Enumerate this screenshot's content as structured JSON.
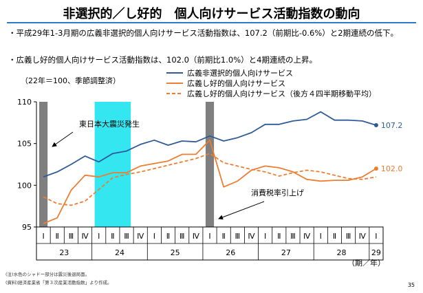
{
  "title": "非選択的／し好的　個人向けサービス活動指数の動向",
  "bullets": [
    "・平成29年1-3月期の広義非選択的個人向けサービス活動指数は、107.2（前期比-0.6%）と2期連続の低下。",
    "・広義し好的個人向けサービス活動指数は、102.0（前期比1.0%）と4期連続の上昇。"
  ],
  "base_note": "（22年＝100、季節調整済）",
  "notes": [
    "(注)水色のシャドー部分は震災後退局面。",
    "(資料)経済産業省「第３次産業活動指数」より作成。"
  ],
  "page_number": "35",
  "colors": {
    "non_selective": "#2e5a97",
    "discretionary": "#ed7d31",
    "gray_shade": "#7f7f7f",
    "cyan_shade": "#33e6f0",
    "title_rule": "#2b78c6"
  },
  "chart_data": {
    "type": "line",
    "ylim": [
      95,
      110
    ],
    "yticks": [
      95,
      100,
      105,
      110
    ],
    "quarter_labels": [
      "Ⅰ",
      "Ⅱ",
      "Ⅲ",
      "Ⅳ",
      "Ⅰ",
      "Ⅱ",
      "Ⅲ",
      "Ⅳ",
      "Ⅰ",
      "Ⅱ",
      "Ⅲ",
      "Ⅳ",
      "Ⅰ",
      "Ⅱ",
      "Ⅲ",
      "Ⅳ",
      "Ⅰ",
      "Ⅱ",
      "Ⅲ",
      "Ⅳ",
      "Ⅰ",
      "Ⅱ",
      "Ⅲ",
      "Ⅳ",
      "Ⅰ"
    ],
    "year_groups": [
      {
        "label": "23",
        "start": 0,
        "end": 3
      },
      {
        "label": "24",
        "start": 4,
        "end": 7
      },
      {
        "label": "25",
        "start": 8,
        "end": 11
      },
      {
        "label": "26",
        "start": 12,
        "end": 15
      },
      {
        "label": "27",
        "start": 16,
        "end": 19
      },
      {
        "label": "28",
        "start": 20,
        "end": 23
      },
      {
        "label": "29",
        "start": 24,
        "end": 24
      }
    ],
    "x_unit_label": "（期／年）",
    "shades": [
      {
        "kind": "gray",
        "from": 0,
        "to": 0
      },
      {
        "kind": "cyan",
        "from": 4,
        "to": 6
      },
      {
        "kind": "gray",
        "from": 12,
        "to": 12
      }
    ],
    "series": [
      {
        "name": "広義非選択的個人向けサービス",
        "style": "solid",
        "color": "#2e5a97",
        "end_label": "107.2",
        "values": [
          101.0,
          101.6,
          102.5,
          103.5,
          102.8,
          103.8,
          104.1,
          104.9,
          105.4,
          104.8,
          105.3,
          105.2,
          105.9,
          105.3,
          105.7,
          106.3,
          107.3,
          107.3,
          107.7,
          107.9,
          108.8,
          107.8,
          107.8,
          107.7,
          107.2
        ]
      },
      {
        "name": "広義し好的個人向けサービス",
        "style": "solid",
        "color": "#ed7d31",
        "end_label": "102.0",
        "values": [
          95.4,
          96.1,
          99.4,
          101.2,
          101.0,
          101.5,
          101.5,
          102.3,
          102.6,
          102.9,
          103.7,
          103.7,
          105.4,
          99.8,
          100.5,
          101.8,
          102.3,
          102.1,
          101.6,
          100.7,
          100.5,
          100.6,
          100.6,
          101.0,
          102.0
        ]
      },
      {
        "name": "広義し好的個人向けサービス（後方４四半期移動平均）",
        "style": "dashed",
        "color": "#ed7d31",
        "values": [
          98.6,
          97.8,
          97.6,
          98.1,
          99.5,
          100.9,
          101.3,
          101.6,
          102.0,
          102.4,
          102.8,
          103.2,
          103.8,
          102.7,
          102.3,
          101.9,
          101.6,
          101.1,
          101.5,
          101.8,
          101.6,
          101.2,
          100.8,
          100.7,
          101.0
        ]
      }
    ],
    "annotations": [
      {
        "text": "東日本大震災発生",
        "target_index": 0
      },
      {
        "text": "消費税率引上げ",
        "target_index": 12
      }
    ]
  }
}
